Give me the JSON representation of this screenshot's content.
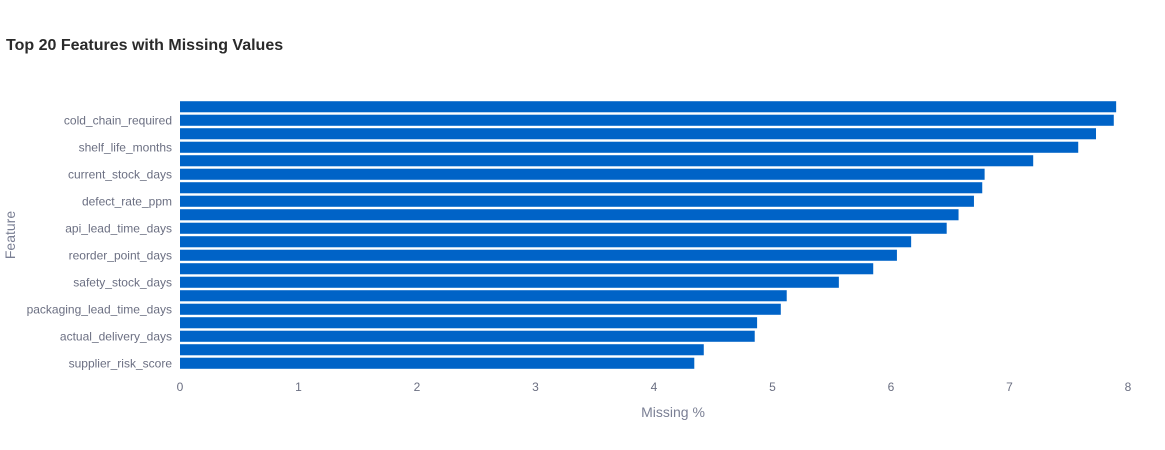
{
  "chart_data": {
    "type": "bar",
    "orientation": "horizontal",
    "title": "Top 20 Features with Missing Values",
    "xlabel": "Missing %",
    "ylabel": "Feature",
    "xlim": [
      0,
      8
    ],
    "xticks": [
      0,
      1,
      2,
      3,
      4,
      5,
      6,
      7,
      8
    ],
    "grid": false,
    "bar_color": "#0063c7",
    "categories": [
      "supplier_risk_score",
      "",
      "actual_delivery_days",
      "",
      "packaging_lead_time_days",
      "",
      "safety_stock_days",
      "",
      "reorder_point_days",
      "",
      "api_lead_time_days",
      "",
      "defect_rate_ppm",
      "",
      "current_stock_days",
      "",
      "shelf_life_months",
      "",
      "cold_chain_required",
      ""
    ],
    "values": [
      4.34,
      4.42,
      4.85,
      4.87,
      5.07,
      5.12,
      5.56,
      5.85,
      6.05,
      6.17,
      6.47,
      6.57,
      6.7,
      6.77,
      6.79,
      7.2,
      7.58,
      7.73,
      7.88,
      7.9
    ]
  }
}
